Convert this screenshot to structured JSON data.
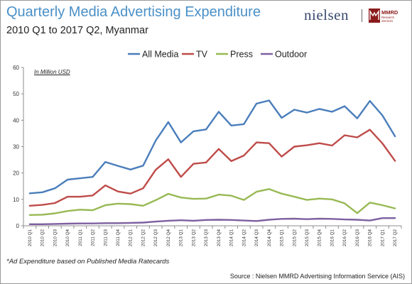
{
  "header": {
    "title": "Quarterly Media Advertising Expenditure",
    "subtitle": "2010 Q1 to 2017 Q2, Myanmar",
    "brand_name": "nielsen",
    "partner_logo_text": "MMRD Research Services"
  },
  "unit_note": "In Million USD",
  "footnote": "*Ad Expenditure based on Published Media Ratecards",
  "source": "Source : Nielsen MMRD Advertising Information Service (AIS)",
  "colors": {
    "all_media": "#4a7ebb",
    "tv": "#be4b48",
    "press": "#98b954",
    "outdoor": "#7d60a0",
    "title": "#4a90c8"
  },
  "chart_data": {
    "type": "line",
    "title": "Quarterly Media Advertising Expenditure",
    "subtitle": "2010 Q1 to 2017 Q2, Myanmar",
    "xlabel": "",
    "ylabel": "",
    "ylim": [
      0,
      60
    ],
    "yticks": [
      0,
      10,
      20,
      30,
      40,
      50,
      60
    ],
    "grid": false,
    "legend_position": "top",
    "categories": [
      "2010 Q1",
      "2010 Q2",
      "2010 Q3",
      "2010 Q4",
      "2011 Q1",
      "2011 Q2",
      "2011 Q3",
      "2011 Q4",
      "2012 Q1",
      "2012 Q2",
      "2012 Q3",
      "2012 Q4",
      "2013 Q1",
      "2013 Q2",
      "2013 Q3",
      "2013 Q4",
      "2014 Q1",
      "2014 Q2",
      "2014 Q3",
      "2014 Q4",
      "2015 Q1",
      "2015 Q2",
      "2015 Q3",
      "2015 Q4",
      "2016 Q1",
      "2016 Q2",
      "2016 Q3",
      "2016 Q4",
      "2017 Q1",
      "2017 Q2"
    ],
    "series": [
      {
        "name": "All Media",
        "color": "#4a7ebb",
        "values": [
          12.3,
          12.7,
          14.2,
          17.5,
          18.0,
          18.5,
          24.2,
          22.7,
          21.3,
          22.8,
          32.3,
          39.3,
          31.6,
          35.8,
          36.5,
          43.2,
          38.0,
          38.5,
          46.3,
          47.5,
          40.9,
          44.0,
          42.9,
          44.3,
          43.2,
          45.3,
          40.7,
          47.3,
          41.8,
          33.9
        ]
      },
      {
        "name": "TV",
        "color": "#be4b48",
        "values": [
          7.6,
          7.9,
          8.6,
          11.0,
          11.0,
          11.5,
          15.3,
          13.0,
          12.2,
          14.2,
          21.2,
          25.2,
          18.5,
          23.5,
          24.0,
          29.1,
          24.5,
          26.6,
          31.6,
          31.3,
          26.2,
          30.0,
          30.5,
          31.3,
          30.4,
          34.3,
          33.5,
          36.4,
          31.2,
          24.6
        ]
      },
      {
        "name": "Press",
        "color": "#98b954",
        "values": [
          4.1,
          4.2,
          4.7,
          5.6,
          6.1,
          5.9,
          7.8,
          8.4,
          8.2,
          7.6,
          9.7,
          12.1,
          10.7,
          10.2,
          10.3,
          11.8,
          11.4,
          9.8,
          12.9,
          13.9,
          12.2,
          11.0,
          9.8,
          10.3,
          10.0,
          8.5,
          4.8,
          8.8,
          7.8,
          6.6
        ]
      },
      {
        "name": "Outdoor",
        "color": "#7d60a0",
        "values": [
          0.6,
          0.6,
          0.7,
          0.8,
          0.9,
          0.9,
          1.0,
          1.0,
          1.1,
          1.2,
          1.6,
          1.9,
          2.1,
          1.9,
          2.2,
          2.3,
          2.2,
          2.0,
          1.8,
          2.3,
          2.6,
          2.7,
          2.5,
          2.7,
          2.6,
          2.4,
          2.3,
          2.0,
          2.9,
          2.9
        ]
      }
    ]
  }
}
